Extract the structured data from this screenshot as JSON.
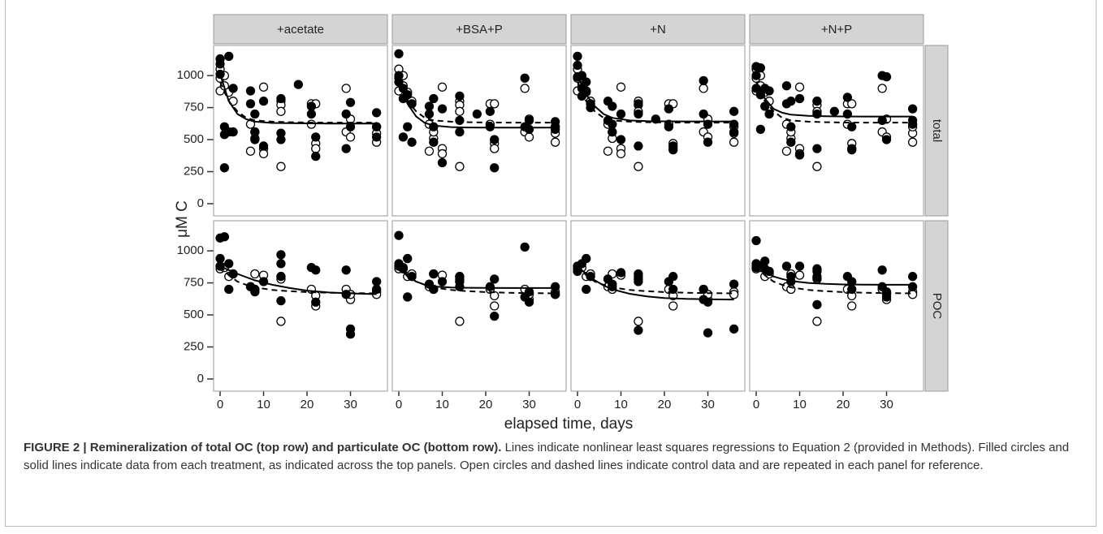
{
  "chart_data": {
    "type": "scatter",
    "ylabel": "μM C",
    "xlabel": "elapsed time, days",
    "facet_cols": [
      "+acetate",
      "+BSA+P",
      "+N",
      "+N+P"
    ],
    "facet_rows": [
      "total",
      "POC"
    ],
    "xlim": [
      -1.5,
      38.5
    ],
    "xticks": [
      0,
      10,
      20,
      30
    ],
    "ylim": [
      -95,
      1235
    ],
    "yticks": [
      0,
      250,
      500,
      750,
      1000
    ],
    "color": "#000000",
    "controls": [
      {
        "points": {
          "filled": false,
          "x": [
            0,
            0,
            0,
            1,
            1,
            2,
            3,
            7,
            7,
            8,
            8,
            10,
            10,
            10,
            14,
            14,
            14,
            14,
            21,
            21,
            22,
            22,
            22,
            29,
            29,
            30,
            30,
            36,
            36,
            36
          ],
          "values": [
            980,
            880,
            1050,
            920,
            1000,
            870,
            800,
            620,
            410,
            510,
            560,
            910,
            430,
            390,
            800,
            770,
            720,
            290,
            780,
            620,
            470,
            430,
            780,
            900,
            560,
            660,
            520,
            550,
            480,
            600
          ]
        },
        "fit": {
          "dashed": true,
          "x": [
            0,
            2,
            4,
            6,
            8,
            12,
            16,
            20,
            25,
            30,
            36
          ],
          "values": [
            950,
            800,
            720,
            670,
            650,
            640,
            636,
            634,
            633,
            633,
            633
          ]
        }
      },
      {
        "points": {
          "filled": false,
          "x": [
            0,
            0,
            1,
            2,
            3,
            7,
            8,
            8,
            10,
            14,
            14,
            14,
            21,
            22,
            22,
            29,
            30,
            30,
            36,
            36
          ],
          "values": [
            880,
            860,
            870,
            800,
            820,
            720,
            700,
            820,
            810,
            800,
            780,
            450,
            700,
            570,
            650,
            700,
            620,
            660,
            680,
            660
          ]
        },
        "fit": {
          "dashed": true,
          "x": [
            0,
            2,
            4,
            6,
            8,
            12,
            16,
            20,
            25,
            30,
            36
          ],
          "values": [
            880,
            810,
            760,
            735,
            715,
            695,
            685,
            678,
            673,
            670,
            668
          ]
        }
      }
    ],
    "panels": [
      {
        "points": {
          "filled": true,
          "x": [
            0,
            0,
            0,
            1,
            1,
            2,
            2,
            3,
            3,
            7,
            7,
            8,
            8,
            10,
            10,
            14,
            14,
            14,
            18,
            21,
            21,
            22,
            22,
            29,
            29,
            30,
            30,
            36,
            36,
            36,
            1,
            8
          ],
          "values": [
            1130,
            1090,
            1010,
            600,
            540,
            1150,
            560,
            900,
            560,
            880,
            780,
            700,
            560,
            800,
            450,
            820,
            550,
            500,
            930,
            760,
            700,
            520,
            370,
            700,
            430,
            790,
            600,
            710,
            600,
            520,
            280,
            500
          ]
        },
        "fit": {
          "dashed": false,
          "x": [
            0,
            2,
            4,
            6,
            8,
            12,
            16,
            20,
            25,
            30,
            36
          ],
          "values": [
            1010,
            800,
            700,
            660,
            640,
            630,
            628,
            627,
            626,
            626,
            626
          ]
        }
      },
      {
        "points": {
          "filled": true,
          "x": [
            0,
            0,
            0,
            1,
            1,
            2,
            2,
            3,
            3,
            7,
            7,
            8,
            8,
            10,
            10,
            14,
            14,
            14,
            18,
            21,
            21,
            22,
            22,
            29,
            29,
            30,
            30,
            36,
            36,
            36,
            1,
            8
          ],
          "values": [
            1000,
            950,
            1170,
            900,
            820,
            850,
            600,
            780,
            480,
            760,
            700,
            820,
            600,
            740,
            320,
            840,
            650,
            560,
            700,
            720,
            600,
            500,
            280,
            980,
            600,
            650,
            580,
            640,
            600,
            580,
            520,
            480
          ]
        },
        "fit": {
          "dashed": false,
          "x": [
            0,
            2,
            4,
            6,
            8,
            12,
            16,
            20,
            25,
            30,
            36
          ],
          "values": [
            960,
            780,
            680,
            630,
            610,
            598,
            595,
            594,
            594,
            594,
            594
          ]
        }
      },
      {
        "points": {
          "filled": true,
          "x": [
            0,
            0,
            0,
            1,
            1,
            2,
            2,
            3,
            3,
            7,
            7,
            8,
            8,
            10,
            10,
            14,
            14,
            14,
            18,
            21,
            21,
            22,
            22,
            29,
            29,
            30,
            30,
            36,
            36,
            36,
            1,
            8
          ],
          "values": [
            1080,
            1150,
            990,
            1000,
            900,
            950,
            880,
            780,
            750,
            800,
            650,
            760,
            620,
            700,
            500,
            780,
            700,
            450,
            660,
            740,
            600,
            450,
            420,
            960,
            700,
            620,
            480,
            720,
            620,
            560,
            840,
            560
          ]
        },
        "fit": {
          "dashed": false,
          "x": [
            0,
            2,
            4,
            6,
            8,
            12,
            16,
            20,
            25,
            30,
            36
          ],
          "values": [
            1000,
            850,
            760,
            700,
            670,
            650,
            645,
            643,
            642,
            642,
            642
          ]
        }
      },
      {
        "points": {
          "filled": true,
          "x": [
            0,
            0,
            0,
            1,
            1,
            2,
            2,
            3,
            3,
            7,
            7,
            8,
            8,
            10,
            10,
            14,
            14,
            14,
            18,
            21,
            21,
            22,
            22,
            29,
            29,
            30,
            30,
            36,
            36,
            36,
            1,
            8
          ],
          "values": [
            1000,
            1070,
            900,
            1060,
            850,
            900,
            760,
            880,
            700,
            920,
            780,
            800,
            600,
            820,
            380,
            800,
            700,
            430,
            720,
            830,
            700,
            600,
            420,
            1000,
            650,
            990,
            500,
            740,
            650,
            620,
            580,
            480
          ]
        },
        "fit": {
          "dashed": false,
          "x": [
            0,
            2,
            4,
            6,
            8,
            12,
            16,
            20,
            25,
            30,
            36
          ],
          "values": [
            950,
            820,
            740,
            710,
            695,
            685,
            682,
            681,
            680,
            680,
            680
          ]
        }
      },
      {
        "points": {
          "filled": true,
          "x": [
            0,
            0,
            0,
            1,
            2,
            2,
            3,
            7,
            8,
            8,
            10,
            14,
            14,
            14,
            14,
            21,
            22,
            22,
            29,
            29,
            30,
            30,
            36,
            36
          ],
          "values": [
            1100,
            940,
            880,
            1110,
            900,
            700,
            820,
            720,
            680,
            700,
            760,
            970,
            900,
            800,
            610,
            870,
            850,
            600,
            850,
            660,
            390,
            350,
            760,
            700
          ]
        },
        "fit": {
          "dashed": false,
          "x": [
            0,
            2,
            4,
            6,
            8,
            12,
            16,
            20,
            25,
            30,
            36
          ],
          "values": [
            880,
            850,
            820,
            795,
            770,
            735,
            710,
            690,
            675,
            668,
            662
          ]
        }
      },
      {
        "points": {
          "filled": true,
          "x": [
            0,
            0,
            0,
            1,
            2,
            2,
            3,
            7,
            8,
            8,
            10,
            14,
            14,
            14,
            14,
            21,
            22,
            22,
            29,
            29,
            30,
            30,
            36,
            36
          ],
          "values": [
            1120,
            900,
            880,
            860,
            940,
            640,
            800,
            740,
            700,
            820,
            760,
            800,
            760,
            720,
            760,
            720,
            780,
            490,
            1030,
            640,
            600,
            680,
            720,
            660
          ]
        },
        "fit": {
          "dashed": false,
          "x": [
            0,
            2,
            4,
            6,
            8,
            12,
            16,
            20,
            25,
            30,
            36
          ],
          "values": [
            880,
            800,
            760,
            735,
            722,
            714,
            712,
            711,
            710,
            710,
            710
          ]
        }
      },
      {
        "points": {
          "filled": true,
          "x": [
            0,
            0,
            0,
            1,
            2,
            2,
            3,
            7,
            8,
            8,
            10,
            14,
            14,
            14,
            14,
            21,
            22,
            22,
            29,
            29,
            30,
            30,
            36,
            36
          ],
          "values": [
            880,
            860,
            840,
            900,
            940,
            700,
            800,
            780,
            740,
            720,
            830,
            820,
            780,
            380,
            760,
            760,
            800,
            700,
            700,
            620,
            600,
            360,
            740,
            390
          ]
        },
        "fit": {
          "dashed": false,
          "x": [
            0,
            2,
            4,
            6,
            8,
            12,
            16,
            20,
            25,
            30,
            36
          ],
          "values": [
            880,
            820,
            770,
            730,
            700,
            665,
            645,
            632,
            625,
            622,
            620
          ]
        }
      },
      {
        "points": {
          "filled": true,
          "x": [
            0,
            0,
            0,
            1,
            2,
            2,
            3,
            7,
            8,
            8,
            10,
            14,
            14,
            14,
            14,
            21,
            22,
            22,
            29,
            29,
            30,
            30,
            36,
            36
          ],
          "values": [
            1080,
            900,
            870,
            880,
            920,
            860,
            840,
            880,
            800,
            760,
            880,
            860,
            840,
            580,
            790,
            800,
            760,
            700,
            850,
            720,
            680,
            640,
            800,
            720
          ]
        },
        "fit": {
          "dashed": false,
          "x": [
            0,
            2,
            4,
            6,
            8,
            12,
            16,
            20,
            25,
            30,
            36
          ],
          "values": [
            880,
            830,
            800,
            780,
            765,
            750,
            742,
            738,
            736,
            735,
            735
          ]
        }
      }
    ]
  },
  "caption": {
    "label": "FIGURE 2 | Remineralization of total OC (top row) and particulate OC (bottom row).",
    "text": "Lines indicate nonlinear least squares regressions to Equation 2 (provided in Methods). Filled circles and solid lines indicate data from each treatment, as indicated across the top panels. Open circles and dashed lines indicate control data and are repeated in each panel for reference."
  }
}
